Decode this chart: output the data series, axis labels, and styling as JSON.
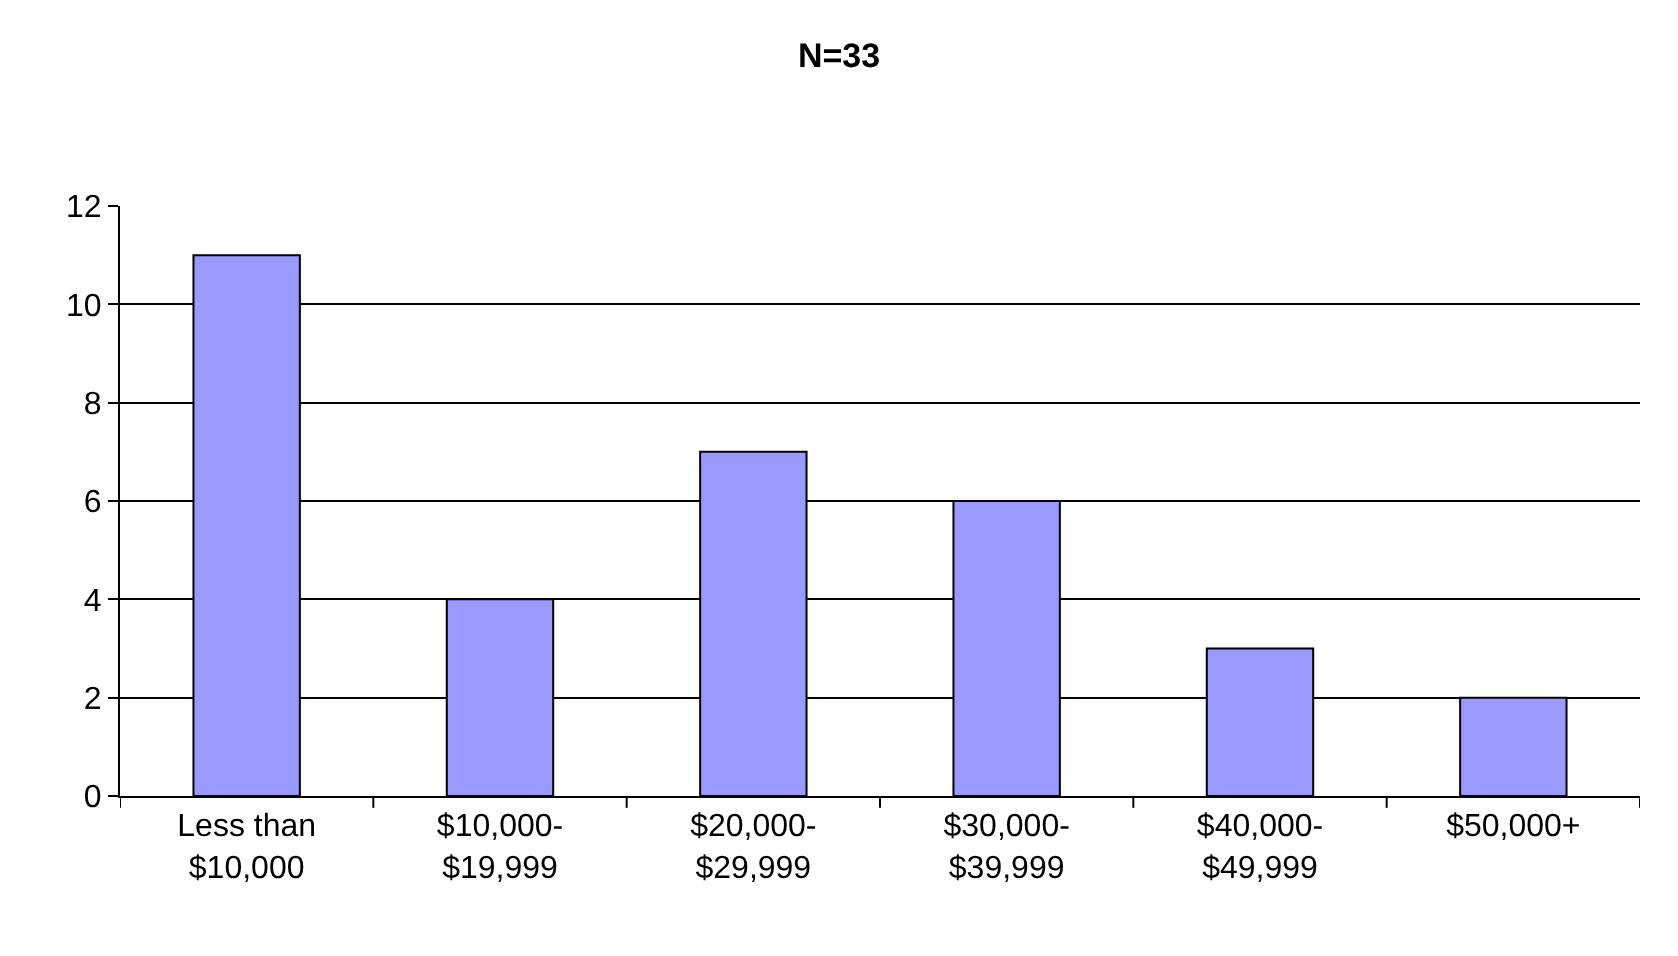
{
  "chart_data": {
    "type": "bar",
    "title": "N=33",
    "categories": [
      "Less than\n$10,000",
      "$10,000-\n$19,999",
      "$20,000-\n$29,999",
      "$30,000-\n$39,999",
      "$40,000-\n$49,999",
      "$50,000+"
    ],
    "values": [
      11,
      4,
      7,
      6,
      3,
      2
    ],
    "color": "#9999ff",
    "ylim": [
      0,
      12
    ],
    "yticks": [
      0,
      2,
      4,
      6,
      8,
      10,
      12
    ],
    "grid": "y"
  }
}
